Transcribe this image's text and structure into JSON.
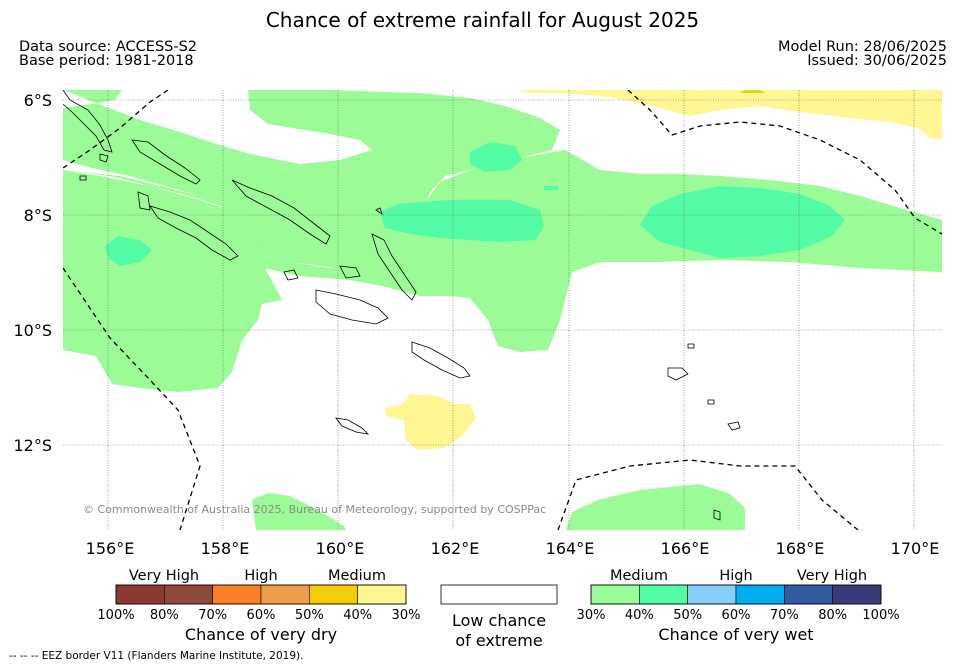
{
  "title": "Chance of extreme rainfall for August 2025",
  "meta": {
    "data_source": "Data source: ACCESS-S2",
    "base_period": "Base period: 1981-2018",
    "model_run": "Model Run: 28/06/2025",
    "issued": "Issued: 30/06/2025"
  },
  "map": {
    "lat_labels": [
      "6°S",
      "8°S",
      "10°S",
      "12°S"
    ],
    "lon_labels": [
      "156°E",
      "158°E",
      "160°E",
      "162°E",
      "164°E",
      "166°E",
      "168°E",
      "170°E"
    ],
    "copyright": "© Commonwealth of Australia 2025, Bureau of Meteorology, supported by COSPPac",
    "region": "Solomon Islands",
    "colors": {
      "medium_wet": "#9bfb97",
      "high_wet": "#52fba4",
      "medium_dry": "#fdf692",
      "high_dry": "#f2cc07"
    }
  },
  "legend": {
    "dry": {
      "headings": [
        "Very High",
        "High",
        "Medium"
      ],
      "colors": [
        "#8b3a33",
        "#8d4a3a",
        "#fd7f25",
        "#ee9e4a",
        "#f2cc07",
        "#fdf692"
      ],
      "ticks": [
        "100%",
        "80%",
        "70%",
        "60%",
        "50%",
        "40%",
        "30%"
      ],
      "caption": "Chance of very dry"
    },
    "low": {
      "color": "#ffffff",
      "caption_line1": "Low chance",
      "caption_line2": "of extreme"
    },
    "wet": {
      "headings": [
        "Medium",
        "High",
        "Very High"
      ],
      "colors": [
        "#9bfb97",
        "#52fba4",
        "#87cefa",
        "#00aeef",
        "#325a9f",
        "#3a3a7a"
      ],
      "ticks": [
        "30%",
        "40%",
        "50%",
        "60%",
        "70%",
        "80%",
        "100%"
      ],
      "caption": "Chance of very wet"
    }
  },
  "eez_note": "--  --  -- EEZ border V11 (Flanders Marine Institute, 2019)."
}
